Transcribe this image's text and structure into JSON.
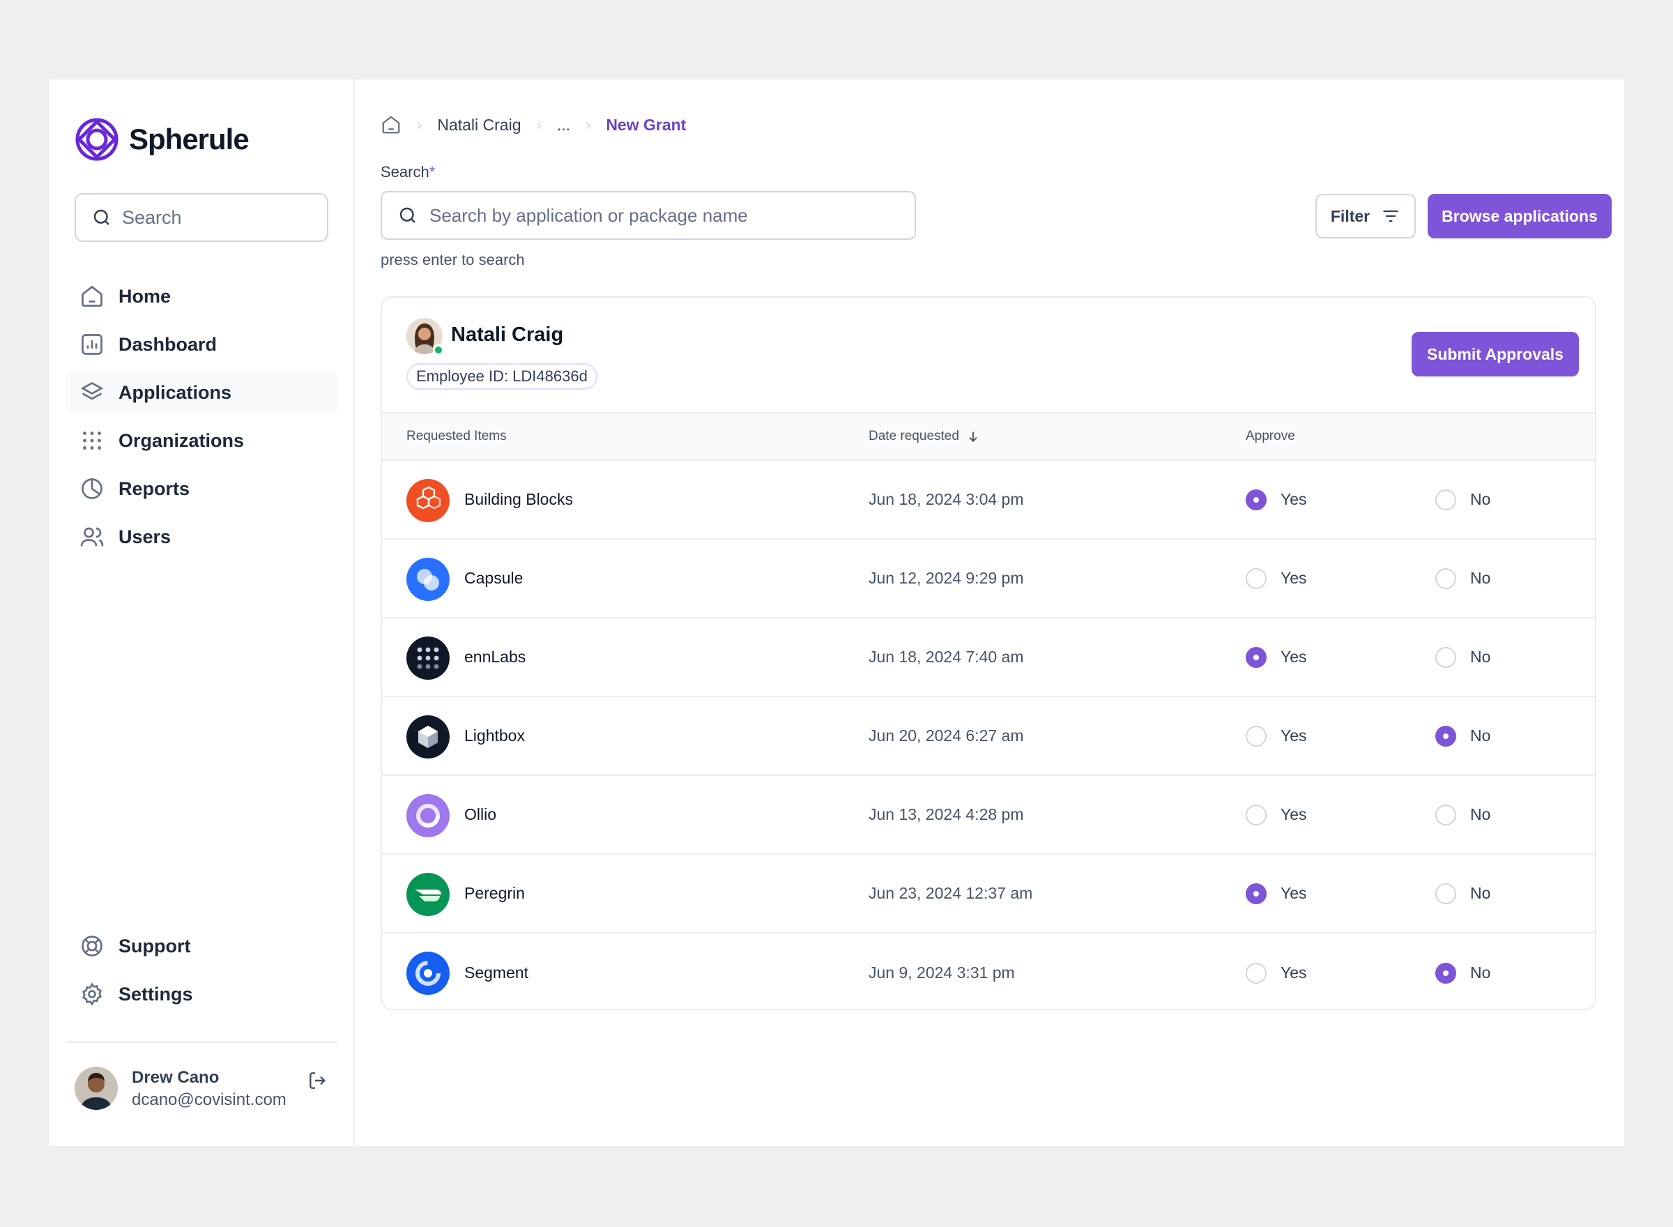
{
  "brand": {
    "name": "Spherule"
  },
  "sidebar": {
    "search_placeholder": "Search",
    "items": [
      {
        "label": "Home",
        "icon": "home-icon"
      },
      {
        "label": "Dashboard",
        "icon": "bar-chart-icon"
      },
      {
        "label": "Applications",
        "icon": "layers-icon",
        "active": true
      },
      {
        "label": "Organizations",
        "icon": "dots-grid-icon"
      },
      {
        "label": "Reports",
        "icon": "pie-chart-icon"
      },
      {
        "label": "Users",
        "icon": "users-icon"
      }
    ],
    "bottom_items": [
      {
        "label": "Support",
        "icon": "life-buoy-icon"
      },
      {
        "label": "Settings",
        "icon": "gear-icon"
      }
    ],
    "user": {
      "name": "Drew Cano",
      "email": "dcano@covisint.com"
    }
  },
  "breadcrumb": {
    "items": [
      "Natali Craig",
      "..."
    ],
    "current": "New Grant"
  },
  "search": {
    "label": "Search",
    "required_mark": "*",
    "placeholder": "Search by application or package name",
    "hint": "press enter to search"
  },
  "toolbar": {
    "filter_label": "Filter",
    "browse_label": "Browse applications"
  },
  "employee": {
    "name": "Natali Craig",
    "id_label": "Employee ID: LDI48636d",
    "status": "online",
    "submit_label": "Submit Approvals"
  },
  "table": {
    "columns": {
      "items": "Requested Items",
      "date": "Date requested",
      "approve": "Approve"
    },
    "yes_label": "Yes",
    "no_label": "No",
    "rows": [
      {
        "name": "Building Blocks",
        "date": "Jun 18, 2024 3:04 pm",
        "approve": "yes",
        "color": "#f04e23"
      },
      {
        "name": "Capsule",
        "date": "Jun 12, 2024 9:29 pm",
        "approve": "none",
        "color": "#2970ff"
      },
      {
        "name": "ennLabs",
        "date": "Jun 18, 2024 7:40 am",
        "approve": "yes",
        "color": "#101828"
      },
      {
        "name": "Lightbox",
        "date": "Jun 20, 2024 6:27 am",
        "approve": "no",
        "color": "#101828"
      },
      {
        "name": "Ollio",
        "date": "Jun 13, 2024 4:28 pm",
        "approve": "none",
        "color": "#9e77ed"
      },
      {
        "name": "Peregrin",
        "date": "Jun 23, 2024 12:37 am",
        "approve": "yes",
        "color": "#079455"
      },
      {
        "name": "Segment",
        "date": "Jun 9, 2024 3:31 pm",
        "approve": "no",
        "color": "#155eef"
      }
    ]
  }
}
